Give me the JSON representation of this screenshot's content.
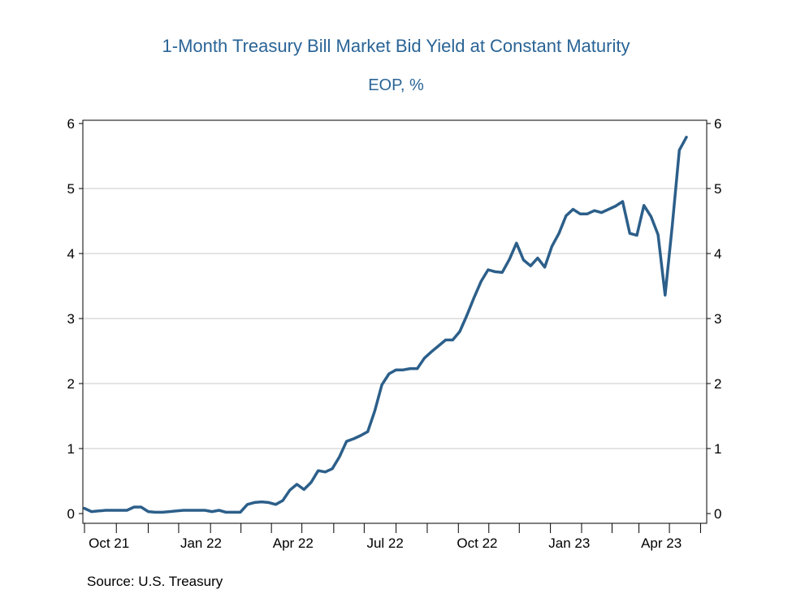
{
  "chart_data": {
    "type": "line",
    "title": "1-Month Treasury Bill Market Bid Yield at Constant Maturity",
    "subtitle": "EOP, %",
    "source": "Source:  U.S. Treasury",
    "ylim": [
      0,
      6
    ],
    "yticks": [
      0,
      1,
      2,
      3,
      4,
      5,
      6
    ],
    "x_tick_labels": [
      {
        "label": "Oct 21",
        "week": 3
      },
      {
        "label": "Jan 22",
        "week": 16
      },
      {
        "label": "Apr 22",
        "week": 29
      },
      {
        "label": "Jul 22",
        "week": 42
      },
      {
        "label": "Oct 22",
        "week": 55
      },
      {
        "label": "Jan 23",
        "week": 68
      },
      {
        "label": "Apr 23",
        "week": 81
      }
    ],
    "x_month_ticks": [
      0,
      4.5,
      9,
      13.3,
      17.8,
      22.1,
      26.4,
      30.7,
      35.2,
      39.5,
      44,
      48.4,
      52.8,
      57.1,
      61.4,
      65.8,
      70.2,
      74.5,
      78.3,
      82.6,
      87
    ],
    "grid": true,
    "color": "#2c5f8a",
    "series": [
      {
        "values": [
          0.08,
          0.03,
          0.04,
          0.05,
          0.05,
          0.05,
          0.05,
          0.1,
          0.1,
          0.03,
          0.02,
          0.02,
          0.03,
          0.04,
          0.05,
          0.05,
          0.05,
          0.05,
          0.03,
          0.05,
          0.02,
          0.02,
          0.02,
          0.14,
          0.17,
          0.18,
          0.17,
          0.14,
          0.2,
          0.36,
          0.45,
          0.37,
          0.48,
          0.66,
          0.64,
          0.69,
          0.87,
          1.11,
          1.15,
          1.2,
          1.26,
          1.58,
          1.98,
          2.15,
          2.21,
          2.21,
          2.23,
          2.23,
          2.39,
          2.49,
          2.58,
          2.67,
          2.67,
          2.8,
          3.05,
          3.32,
          3.57,
          3.75,
          3.72,
          3.71,
          3.91,
          4.16,
          3.9,
          3.81,
          3.93,
          3.79,
          4.11,
          4.31,
          4.58,
          4.68,
          4.61,
          4.61,
          4.66,
          4.63,
          4.68,
          4.73,
          4.8,
          4.31,
          4.28,
          4.74,
          4.57,
          4.29,
          3.36,
          4.43,
          5.59,
          5.79
        ]
      }
    ]
  }
}
